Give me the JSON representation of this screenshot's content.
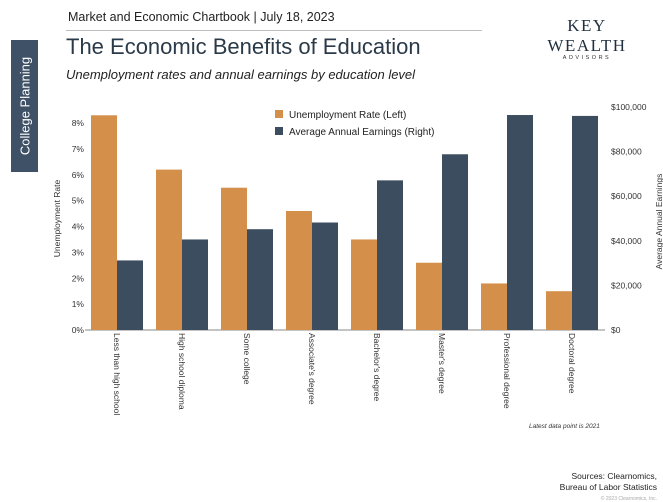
{
  "header": {
    "text": "Market and Economic Chartbook | July 18, 2023",
    "logo_main": "KEY WEALTH",
    "logo_sub": "ADVISORS"
  },
  "side_tab": "College Planning",
  "title": "The Economic Benefits of Education",
  "subtitle": "Unemployment rates and annual earnings by education level",
  "note": "Latest data point is 2021",
  "sources": {
    "line1": "Sources: Clearnomics,",
    "line2": "Bureau of Labor Statistics"
  },
  "copyright": "© 2023 Clearnomics, Inc.",
  "chart_data": {
    "type": "bar",
    "categories": [
      "Less than high school",
      "High school diploma",
      "Some college",
      "Associate's degree",
      "Bachelor's degree",
      "Master's degree",
      "Professional degree",
      "Doctoral degree"
    ],
    "series": [
      {
        "name": "Unemployment Rate (Left)",
        "axis": "left",
        "color": "#d4904b",
        "values": [
          8.3,
          6.2,
          5.5,
          4.6,
          3.5,
          2.6,
          1.8,
          1.5
        ]
      },
      {
        "name": "Average Annual Earnings (Right)",
        "axis": "right",
        "color": "#3b4d5e",
        "values": [
          31200,
          40600,
          45200,
          48200,
          67100,
          78800,
          96400,
          96000
        ]
      }
    ],
    "y_left": {
      "label": "Unemployment Rate",
      "min": 0,
      "max": 8.62,
      "ticks": [
        0,
        1,
        2,
        3,
        4,
        5,
        6,
        7,
        8
      ],
      "tick_labels": [
        "0%",
        "1%",
        "2%",
        "3%",
        "4%",
        "5%",
        "6%",
        "7%",
        "8%"
      ]
    },
    "y_right": {
      "label": "Average Annual Earnings",
      "min": 0,
      "max": 100000,
      "ticks": [
        0,
        20000,
        40000,
        60000,
        80000,
        100000
      ],
      "tick_labels": [
        "$0",
        "$20,000",
        "$40,000",
        "$60,000",
        "$80,000",
        "$100,000"
      ]
    },
    "legend_position": "top-center",
    "grid": false
  }
}
